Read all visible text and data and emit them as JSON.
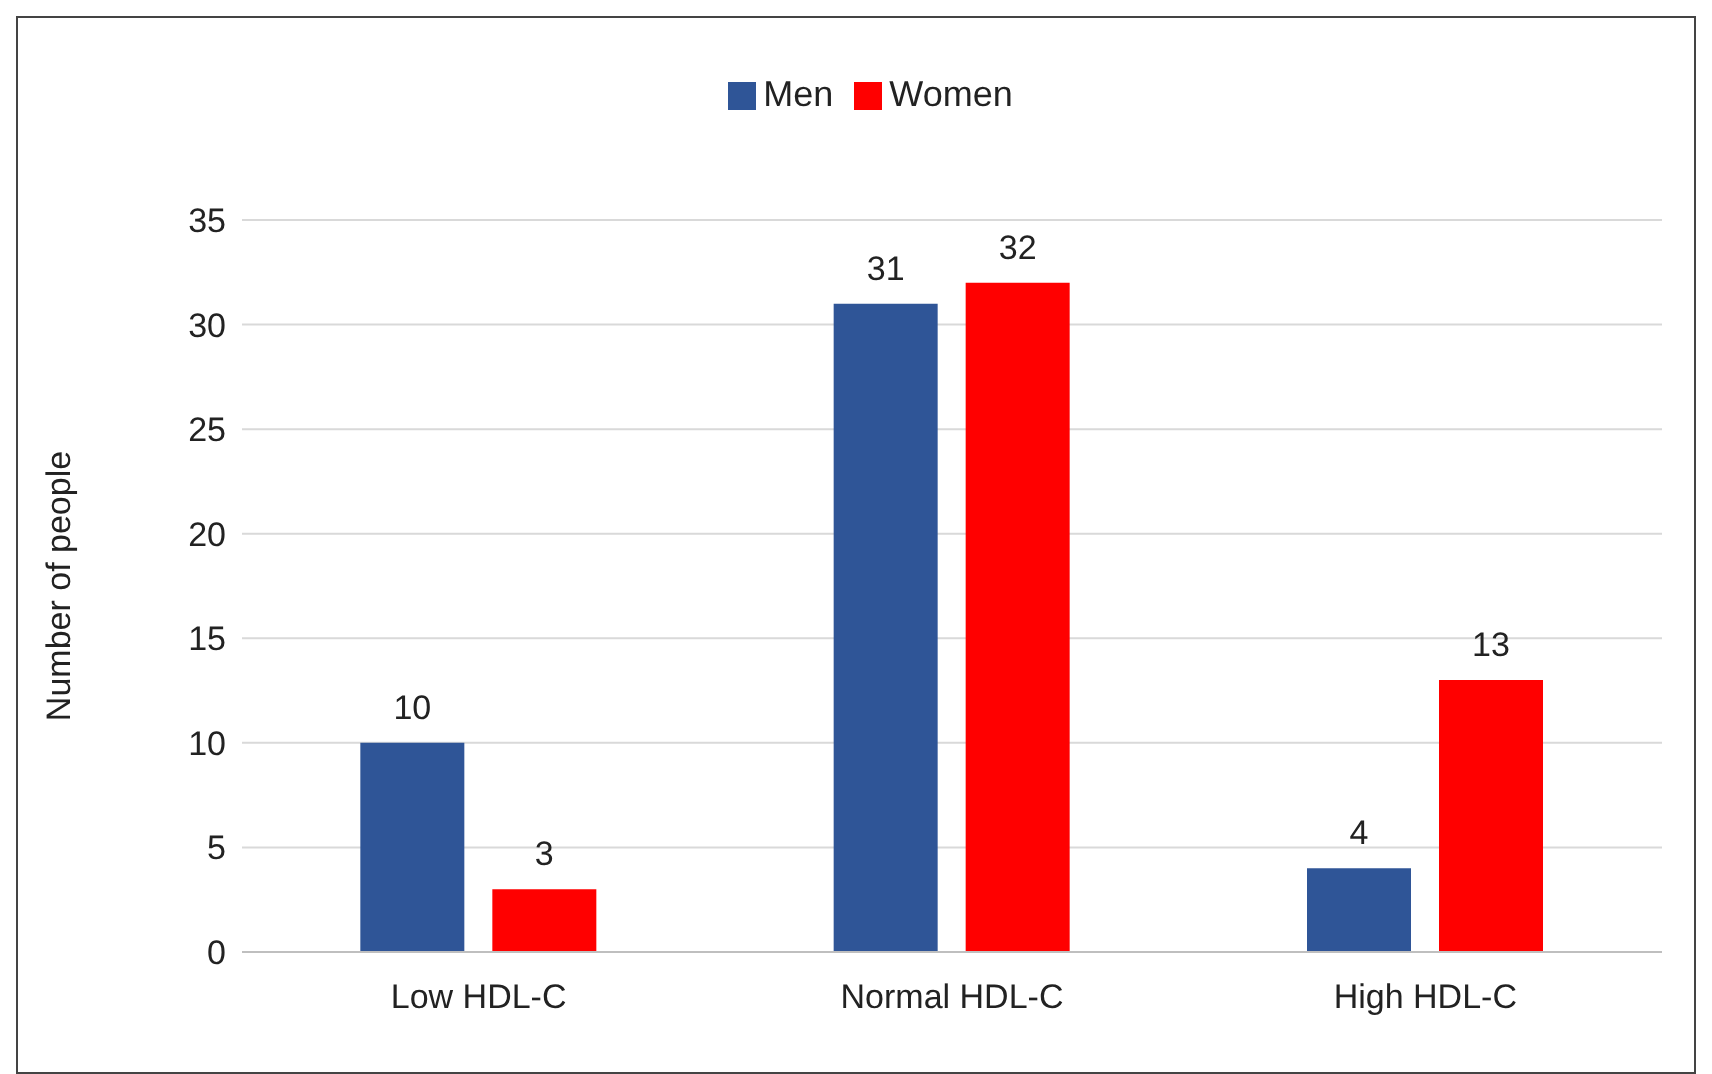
{
  "chart_data": {
    "type": "bar",
    "ylabel": "Number of people",
    "categories": [
      "Low HDL-C",
      "Normal HDL-C",
      "High HDL-C"
    ],
    "series": [
      {
        "name": "Men",
        "color": "#2f5597",
        "values": [
          10,
          31,
          4
        ]
      },
      {
        "name": "Women",
        "color": "#ff0000",
        "values": [
          3,
          32,
          13
        ]
      }
    ],
    "ylim": [
      0,
      35
    ],
    "yticks": [
      0,
      5,
      10,
      15,
      20,
      25,
      30,
      35
    ],
    "grid": "y",
    "legend": "top",
    "data_labels": true
  }
}
